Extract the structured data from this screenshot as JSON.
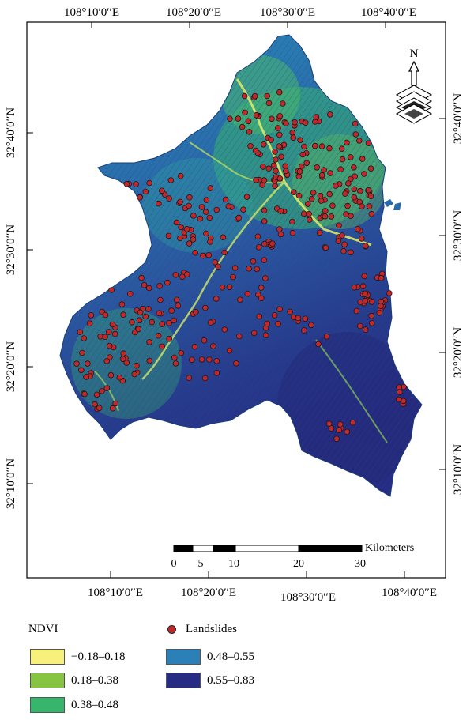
{
  "map": {
    "top_lon_ticks": [
      "108°10′0′′E",
      "108°20′0′′E",
      "108°30′0′′E",
      "108°40′0′′E"
    ],
    "bottom_lon_ticks": [
      "108°10′0′′E",
      "108°20′0′′E",
      "108°30′0′′E",
      "108°40′0′′E"
    ],
    "left_lat_ticks": [
      "32°40′0′′N",
      "32°30′0′′N",
      "32°20′0′′N",
      "32°10′0′′N"
    ],
    "right_lat_ticks": [
      "32°40′0′′N",
      "32°30′0′′N",
      "32°20′0′′N",
      "32°10′0′′N"
    ],
    "north_label": "N",
    "scale": {
      "unit": "Kilometers",
      "labels": [
        "0",
        "5",
        "10",
        "20",
        "30"
      ]
    }
  },
  "legend": {
    "ndvi_title": "NDVI",
    "classes": [
      {
        "label": "−0.18–0.18",
        "color": "#f7f07a"
      },
      {
        "label": "0.18–0.38",
        "color": "#86c442"
      },
      {
        "label": "0.38–0.48",
        "color": "#37b56d"
      },
      {
        "label": "0.48–0.55",
        "color": "#2c80b8"
      },
      {
        "label": "0.55–0.83",
        "color": "#262c83"
      }
    ],
    "landslides_label": "Landslides",
    "landslide_color": "#c0282c"
  }
}
